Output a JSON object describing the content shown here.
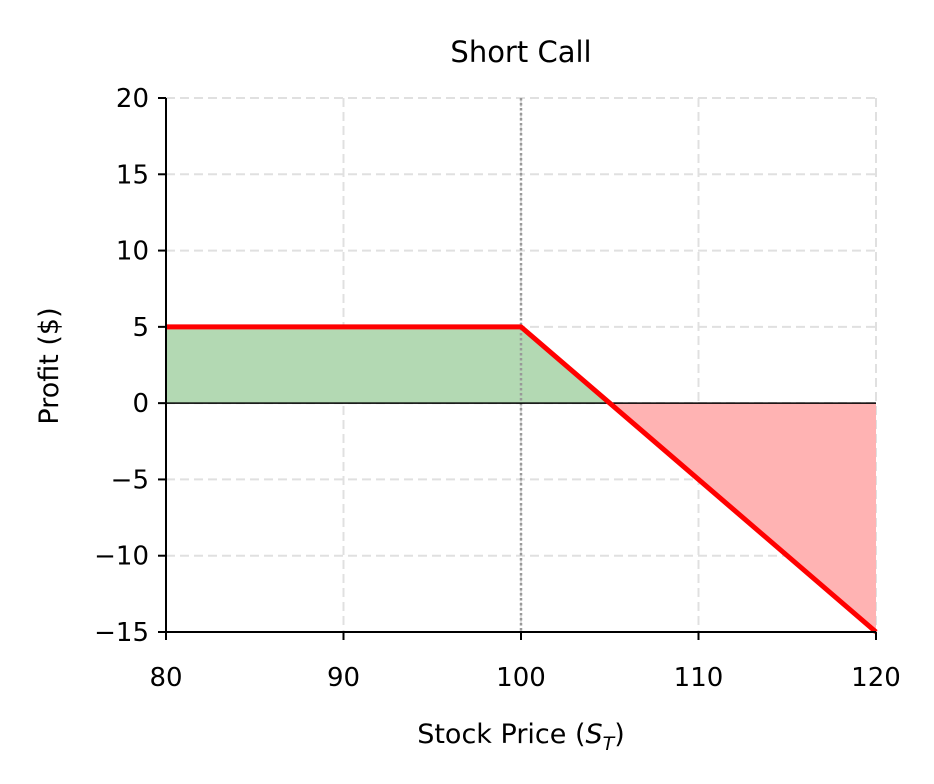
{
  "chart_data": {
    "type": "line",
    "title": "Short Call",
    "xlabel": {
      "main": "Stock Price (",
      "math": "S",
      "sub": "T",
      "close": ")"
    },
    "ylabel": "Profit ($)",
    "xlim": [
      80,
      120
    ],
    "ylim": [
      -15,
      20
    ],
    "xticks": [
      80,
      90,
      100,
      110,
      120
    ],
    "xtick_labels": [
      "80",
      "90",
      "100",
      "110",
      "120"
    ],
    "yticks": [
      -15,
      -10,
      -5,
      0,
      5,
      10,
      15,
      20
    ],
    "ytick_labels": [
      "−15",
      "−10",
      "−5",
      "0",
      "5",
      "10",
      "15",
      "20"
    ],
    "grid": true,
    "strike": 100,
    "series": [
      {
        "x": [
          80,
          100,
          120
        ],
        "y": [
          5,
          5,
          -15
        ],
        "color": "#ff0000"
      }
    ],
    "profit_fill_color": "#b3d9b3",
    "loss_fill_color": "#ffb3b3"
  }
}
